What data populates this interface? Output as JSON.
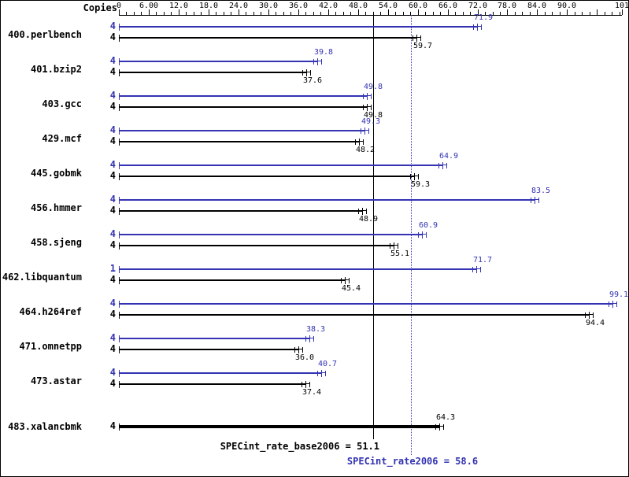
{
  "copies_header": "Copies",
  "colors": {
    "peak": "#3333b3",
    "base": "#000000",
    "background": "#ffffff"
  },
  "axis": {
    "tick_labels": [
      "0",
      "6.00",
      "12.0",
      "18.0",
      "24.0",
      "30.0",
      "36.0",
      "42.0",
      "48.0",
      "54.0",
      "60.0",
      "66.0",
      "72.0",
      "78.0",
      "84.0",
      "90.0",
      "101"
    ],
    "tick_values": [
      0,
      6,
      12,
      18,
      24,
      30,
      36,
      42,
      48,
      54,
      60,
      66,
      72,
      78,
      84,
      90,
      101
    ]
  },
  "chart_data": {
    "type": "bar",
    "orientation": "horizontal",
    "xlim": [
      0,
      101
    ],
    "series": [
      {
        "name": "peak",
        "color": "#3333b3"
      },
      {
        "name": "base",
        "color": "#000000"
      }
    ],
    "benchmarks": [
      {
        "name": "400.perlbench",
        "peak_copies": "4",
        "base_copies": "4",
        "peak": 71.9,
        "peak_display": "71.9",
        "base": 59.7,
        "base_display": "59.7"
      },
      {
        "name": "401.bzip2",
        "peak_copies": "4",
        "base_copies": "4",
        "peak": 39.8,
        "peak_display": "39.8",
        "base": 37.6,
        "base_display": "37.6"
      },
      {
        "name": "403.gcc",
        "peak_copies": "4",
        "base_copies": "4",
        "peak": 49.8,
        "peak_display": "49.8",
        "base": 49.8,
        "base_display": "49.8"
      },
      {
        "name": "429.mcf",
        "peak_copies": "4",
        "base_copies": "4",
        "peak": 49.3,
        "peak_display": "49.3",
        "base": 48.2,
        "base_display": "48.2"
      },
      {
        "name": "445.gobmk",
        "peak_copies": "4",
        "base_copies": "4",
        "peak": 64.9,
        "peak_display": "64.9",
        "base": 59.3,
        "base_display": "59.3"
      },
      {
        "name": "456.hmmer",
        "peak_copies": "4",
        "base_copies": "4",
        "peak": 83.5,
        "peak_display": "83.5",
        "base": 48.9,
        "base_display": "48.9"
      },
      {
        "name": "458.sjeng",
        "peak_copies": "4",
        "base_copies": "4",
        "peak": 60.9,
        "peak_display": "60.9",
        "base": 55.1,
        "base_display": "55.1"
      },
      {
        "name": "462.libquantum",
        "peak_copies": "1",
        "base_copies": "4",
        "peak": 71.7,
        "peak_display": "71.7",
        "base": 45.4,
        "base_display": "45.4"
      },
      {
        "name": "464.h264ref",
        "peak_copies": "4",
        "base_copies": "4",
        "peak": 99.1,
        "peak_display": "99.1",
        "base": 94.4,
        "base_display": "94.4"
      },
      {
        "name": "471.omnetpp",
        "peak_copies": "4",
        "base_copies": "4",
        "peak": 38.3,
        "peak_display": "38.3",
        "base": 36.0,
        "base_display": "36.0"
      },
      {
        "name": "473.astar",
        "peak_copies": "4",
        "base_copies": "4",
        "peak": 40.7,
        "peak_display": "40.7",
        "base": 37.4,
        "base_display": "37.4"
      },
      {
        "name": "483.xalancbmk",
        "single": true,
        "base_copies": "4",
        "base": 64.3,
        "base_display": "64.3"
      }
    ],
    "means": {
      "base_label": "SPECint_rate_base2006 = 51.1",
      "base_value": 51.1,
      "peak_label": "SPECint_rate2006 = 58.6",
      "peak_value": 58.6
    }
  }
}
